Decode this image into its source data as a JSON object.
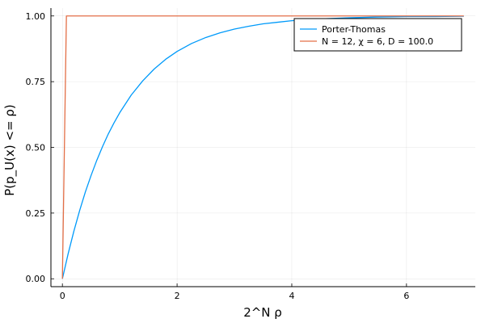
{
  "chart_data": {
    "type": "line",
    "xlabel": "2^N  ρ",
    "ylabel": "P(p_U(x) <= ρ)",
    "xlim": [
      -0.2,
      7.2
    ],
    "ylim": [
      -0.03,
      1.03
    ],
    "xticks": [
      0,
      2,
      4,
      6
    ],
    "xtick_labels": [
      "0",
      "2",
      "4",
      "6"
    ],
    "yticks": [
      0,
      0.25,
      0.5,
      0.75,
      1.0
    ],
    "ytick_labels": [
      "0.00",
      "0.25",
      "0.50",
      "0.75",
      "1.00"
    ],
    "grid": true,
    "legend_position": "top-right",
    "series": [
      {
        "name": "Porter-Thomas",
        "color": "#009AFA",
        "x": [
          0,
          0.1,
          0.2,
          0.3,
          0.4,
          0.5,
          0.6,
          0.7,
          0.8,
          0.9,
          1.0,
          1.2,
          1.4,
          1.6,
          1.8,
          2.0,
          2.25,
          2.5,
          2.75,
          3.0,
          3.25,
          3.5,
          3.75,
          4.0,
          4.5,
          5.0,
          5.5,
          6.0,
          6.5,
          7.0
        ],
        "y": [
          0.0,
          0.095,
          0.181,
          0.259,
          0.33,
          0.393,
          0.451,
          0.503,
          0.551,
          0.593,
          0.632,
          0.699,
          0.753,
          0.798,
          0.835,
          0.865,
          0.895,
          0.918,
          0.936,
          0.95,
          0.961,
          0.97,
          0.976,
          0.982,
          0.989,
          0.993,
          0.996,
          0.998,
          0.998,
          0.999
        ]
      },
      {
        "name": "N = 12, χ = 6, D = 100.0",
        "color": "#E36F47",
        "x": [
          0,
          0.07,
          7.0
        ],
        "y": [
          0.0,
          1.0,
          1.0
        ]
      }
    ]
  }
}
